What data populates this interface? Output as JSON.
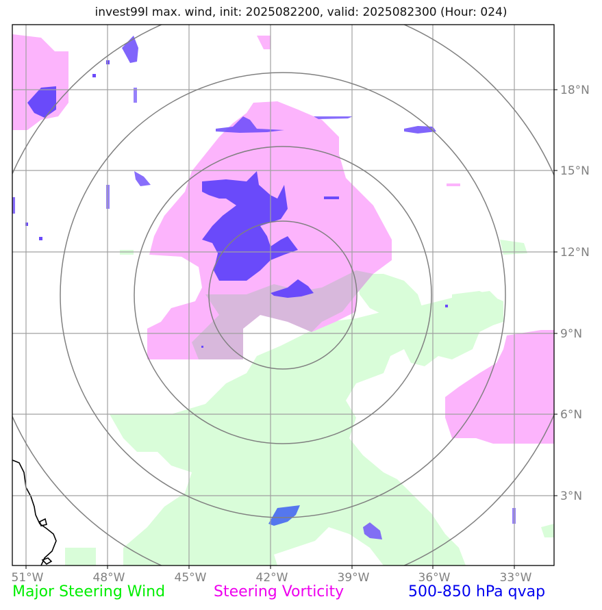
{
  "title": "invest99l max. wind, init: 2025082200, valid: 2025082300 (Hour: 024)",
  "map": {
    "lon_labels": [
      "51°W",
      "48°W",
      "45°W",
      "42°W",
      "39°W",
      "36°W",
      "33°W"
    ],
    "lat_labels": [
      "18°N",
      "15°N",
      "12°N",
      "9°N",
      "6°N",
      "3°N"
    ],
    "range_rings": 4,
    "colors": {
      "steering_wind": "#d9fdd9",
      "steering_vorticity": "#fcb4fc",
      "qvap": "#6a4afa",
      "grid": "#a0a0a0",
      "rings": "#808080",
      "coastline": "#000000"
    }
  },
  "legend": {
    "wind": "Major Steering Wind",
    "vorticity": "Steering Vorticity",
    "qvap": "500-850 hPa qvap",
    "wind_color": "#00ee00",
    "vorticity_color": "#ee00ee",
    "qvap_color": "#0000ee"
  }
}
